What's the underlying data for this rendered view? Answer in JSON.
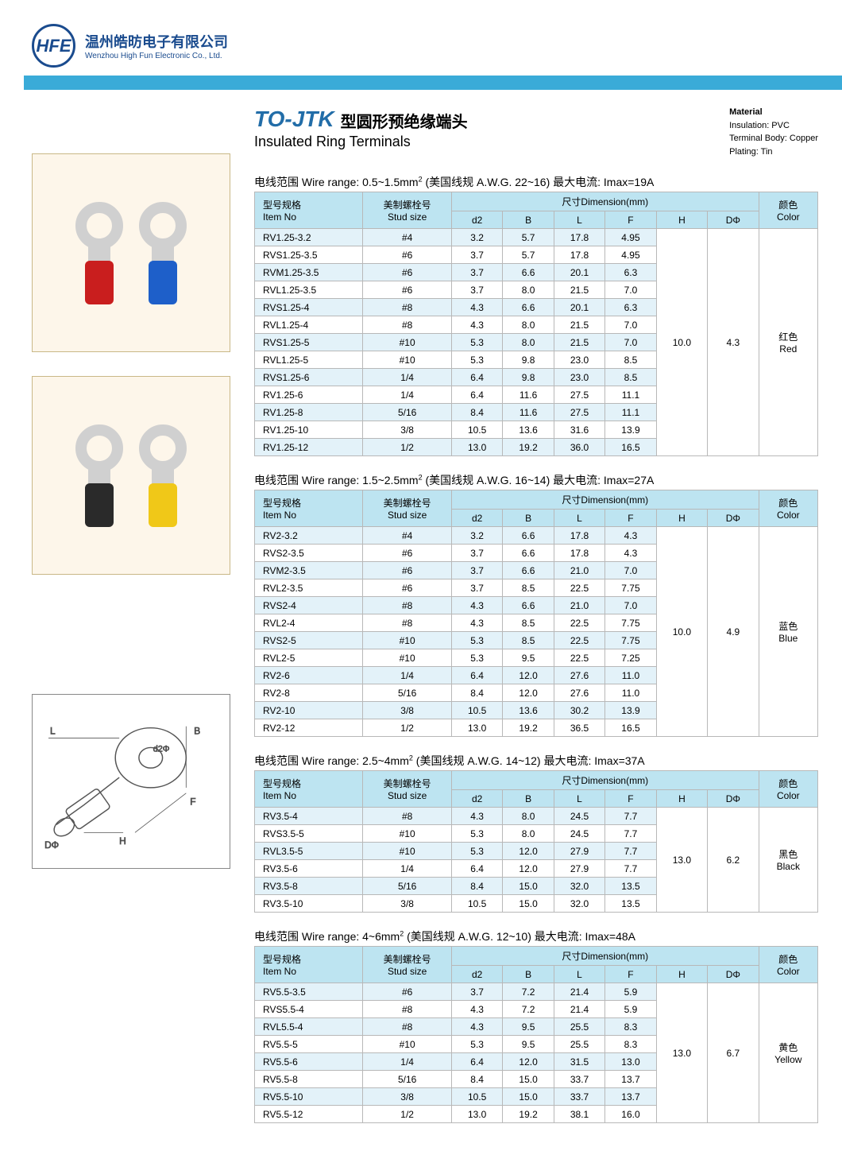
{
  "company": {
    "cn": "温州皓昉电子有限公司",
    "en": "Wenzhou High Fun Electronic Co., Ltd.",
    "logo": "HFE"
  },
  "product": {
    "code": "TO-JTK",
    "cn": "型圆形预绝缘端头",
    "en": "Insulated Ring Terminals"
  },
  "material": {
    "title": "Material",
    "lines": [
      "Insulation: PVC",
      "Terminal Body: Copper",
      "Plating: Tin"
    ]
  },
  "headers": {
    "item_cn": "型号规格",
    "item_en": "Item No",
    "stud_cn": "美制螺栓号",
    "stud_en": "Stud size",
    "dim_cn": "尺寸Dimension(mm)",
    "color_cn": "颜色",
    "color_en": "Color",
    "d2": "d2",
    "B": "B",
    "L": "L",
    "F": "F",
    "H": "H",
    "Dphi": "DΦ"
  },
  "tables": [
    {
      "range": "电线范围 Wire range: 0.5~1.5mm² (美国线规 A.W.G. 22~16)   最大电流: Imax=19A",
      "H": "10.0",
      "Dphi": "4.3",
      "color_cn": "红色",
      "color_en": "Red",
      "rows": [
        {
          "item": "RV1.25-3.2",
          "stud": "#4",
          "d2": "3.2",
          "B": "5.7",
          "L": "17.8",
          "F": "4.95"
        },
        {
          "item": "RVS1.25-3.5",
          "stud": "#6",
          "d2": "3.7",
          "B": "5.7",
          "L": "17.8",
          "F": "4.95"
        },
        {
          "item": "RVM1.25-3.5",
          "stud": "#6",
          "d2": "3.7",
          "B": "6.6",
          "L": "20.1",
          "F": "6.3"
        },
        {
          "item": "RVL1.25-3.5",
          "stud": "#6",
          "d2": "3.7",
          "B": "8.0",
          "L": "21.5",
          "F": "7.0"
        },
        {
          "item": "RVS1.25-4",
          "stud": "#8",
          "d2": "4.3",
          "B": "6.6",
          "L": "20.1",
          "F": "6.3"
        },
        {
          "item": "RVL1.25-4",
          "stud": "#8",
          "d2": "4.3",
          "B": "8.0",
          "L": "21.5",
          "F": "7.0"
        },
        {
          "item": "RVS1.25-5",
          "stud": "#10",
          "d2": "5.3",
          "B": "8.0",
          "L": "21.5",
          "F": "7.0"
        },
        {
          "item": "RVL1.25-5",
          "stud": "#10",
          "d2": "5.3",
          "B": "9.8",
          "L": "23.0",
          "F": "8.5"
        },
        {
          "item": "RVS1.25-6",
          "stud": "1/4",
          "d2": "6.4",
          "B": "9.8",
          "L": "23.0",
          "F": "8.5"
        },
        {
          "item": "RV1.25-6",
          "stud": "1/4",
          "d2": "6.4",
          "B": "11.6",
          "L": "27.5",
          "F": "11.1"
        },
        {
          "item": "RV1.25-8",
          "stud": "5/16",
          "d2": "8.4",
          "B": "11.6",
          "L": "27.5",
          "F": "11.1"
        },
        {
          "item": "RV1.25-10",
          "stud": "3/8",
          "d2": "10.5",
          "B": "13.6",
          "L": "31.6",
          "F": "13.9"
        },
        {
          "item": "RV1.25-12",
          "stud": "1/2",
          "d2": "13.0",
          "B": "19.2",
          "L": "36.0",
          "F": "16.5"
        }
      ]
    },
    {
      "range": "电线范围 Wire range: 1.5~2.5mm² (美国线规 A.W.G. 16~14)   最大电流: Imax=27A",
      "H": "10.0",
      "Dphi": "4.9",
      "color_cn": "蓝色",
      "color_en": "Blue",
      "rows": [
        {
          "item": "RV2-3.2",
          "stud": "#4",
          "d2": "3.2",
          "B": "6.6",
          "L": "17.8",
          "F": "4.3"
        },
        {
          "item": "RVS2-3.5",
          "stud": "#6",
          "d2": "3.7",
          "B": "6.6",
          "L": "17.8",
          "F": "4.3"
        },
        {
          "item": "RVM2-3.5",
          "stud": "#6",
          "d2": "3.7",
          "B": "6.6",
          "L": "21.0",
          "F": "7.0"
        },
        {
          "item": "RVL2-3.5",
          "stud": "#6",
          "d2": "3.7",
          "B": "8.5",
          "L": "22.5",
          "F": "7.75"
        },
        {
          "item": "RVS2-4",
          "stud": "#8",
          "d2": "4.3",
          "B": "6.6",
          "L": "21.0",
          "F": "7.0"
        },
        {
          "item": "RVL2-4",
          "stud": "#8",
          "d2": "4.3",
          "B": "8.5",
          "L": "22.5",
          "F": "7.75"
        },
        {
          "item": "RVS2-5",
          "stud": "#10",
          "d2": "5.3",
          "B": "8.5",
          "L": "22.5",
          "F": "7.75"
        },
        {
          "item": "RVL2-5",
          "stud": "#10",
          "d2": "5.3",
          "B": "9.5",
          "L": "22.5",
          "F": "7.25"
        },
        {
          "item": "RV2-6",
          "stud": "1/4",
          "d2": "6.4",
          "B": "12.0",
          "L": "27.6",
          "F": "11.0"
        },
        {
          "item": "RV2-8",
          "stud": "5/16",
          "d2": "8.4",
          "B": "12.0",
          "L": "27.6",
          "F": "11.0"
        },
        {
          "item": "RV2-10",
          "stud": "3/8",
          "d2": "10.5",
          "B": "13.6",
          "L": "30.2",
          "F": "13.9"
        },
        {
          "item": "RV2-12",
          "stud": "1/2",
          "d2": "13.0",
          "B": "19.2",
          "L": "36.5",
          "F": "16.5"
        }
      ]
    },
    {
      "range": "电线范围 Wire range: 2.5~4mm² (美国线规 A.W.G. 14~12)   最大电流: Imax=37A",
      "H": "13.0",
      "Dphi": "6.2",
      "color_cn": "黑色",
      "color_en": "Black",
      "rows": [
        {
          "item": "RV3.5-4",
          "stud": "#8",
          "d2": "4.3",
          "B": "8.0",
          "L": "24.5",
          "F": "7.7"
        },
        {
          "item": "RVS3.5-5",
          "stud": "#10",
          "d2": "5.3",
          "B": "8.0",
          "L": "24.5",
          "F": "7.7"
        },
        {
          "item": "RVL3.5-5",
          "stud": "#10",
          "d2": "5.3",
          "B": "12.0",
          "L": "27.9",
          "F": "7.7"
        },
        {
          "item": "RV3.5-6",
          "stud": "1/4",
          "d2": "6.4",
          "B": "12.0",
          "L": "27.9",
          "F": "7.7"
        },
        {
          "item": "RV3.5-8",
          "stud": "5/16",
          "d2": "8.4",
          "B": "15.0",
          "L": "32.0",
          "F": "13.5"
        },
        {
          "item": "RV3.5-10",
          "stud": "3/8",
          "d2": "10.5",
          "B": "15.0",
          "L": "32.0",
          "F": "13.5"
        }
      ]
    },
    {
      "range": "电线范围 Wire range: 4~6mm² (美国线规 A.W.G. 12~10)   最大电流: Imax=48A",
      "H": "13.0",
      "Dphi": "6.7",
      "color_cn": "黄色",
      "color_en": "Yellow",
      "rows": [
        {
          "item": "RV5.5-3.5",
          "stud": "#6",
          "d2": "3.7",
          "B": "7.2",
          "L": "21.4",
          "F": "5.9"
        },
        {
          "item": "RVS5.5-4",
          "stud": "#8",
          "d2": "4.3",
          "B": "7.2",
          "L": "21.4",
          "F": "5.9"
        },
        {
          "item": "RVL5.5-4",
          "stud": "#8",
          "d2": "4.3",
          "B": "9.5",
          "L": "25.5",
          "F": "8.3"
        },
        {
          "item": "RV5.5-5",
          "stud": "#10",
          "d2": "5.3",
          "B": "9.5",
          "L": "25.5",
          "F": "8.3"
        },
        {
          "item": "RV5.5-6",
          "stud": "1/4",
          "d2": "6.4",
          "B": "12.0",
          "L": "31.5",
          "F": "13.0"
        },
        {
          "item": "RV5.5-8",
          "stud": "5/16",
          "d2": "8.4",
          "B": "15.0",
          "L": "33.7",
          "F": "13.7"
        },
        {
          "item": "RV5.5-10",
          "stud": "3/8",
          "d2": "10.5",
          "B": "15.0",
          "L": "33.7",
          "F": "13.7"
        },
        {
          "item": "RV5.5-12",
          "stud": "1/2",
          "d2": "13.0",
          "B": "19.2",
          "L": "38.1",
          "F": "16.0"
        }
      ]
    }
  ],
  "colors": {
    "band": "#3aabd8",
    "header_bg": "#bde4f1",
    "row_alt": "#e3f2f9",
    "border": "#b8b8b8",
    "brand": "#1a4b8e",
    "code": "#226da8"
  }
}
